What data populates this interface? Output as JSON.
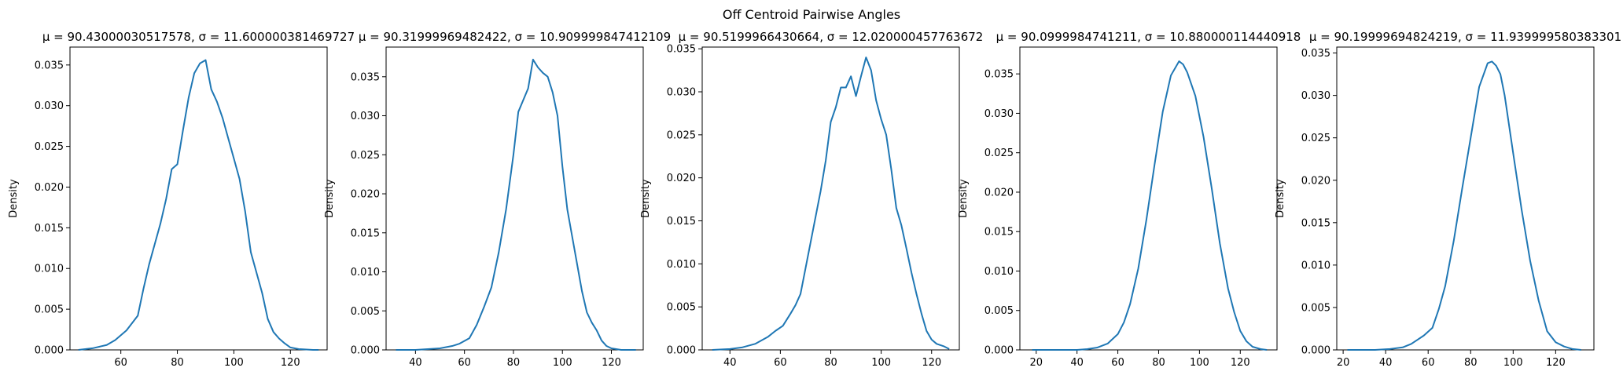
{
  "figure": {
    "suptitle": "Off Centroid Pairwise Angles"
  },
  "colors": {
    "line": "#1f77b4",
    "axes": "#000000",
    "background": "#ffffff"
  },
  "chart_data": [
    {
      "type": "line",
      "title": "μ = 90.43000030517578, σ = 11.600000381469727",
      "ylabel": "Density",
      "xlim": [
        42,
        133
      ],
      "ylim": [
        0,
        0.0372
      ],
      "xticks": [
        60,
        80,
        100,
        120
      ],
      "yticks": [
        0.0,
        0.005,
        0.01,
        0.015,
        0.02,
        0.025,
        0.03,
        0.035
      ],
      "grid": false,
      "series": [
        {
          "x": [
            45,
            50,
            55,
            58,
            62,
            66,
            68,
            70,
            72,
            74,
            76,
            78,
            80,
            82,
            84,
            86,
            88,
            90,
            92,
            94,
            96,
            98,
            100,
            102,
            104,
            106,
            108,
            110,
            112,
            114,
            116,
            118,
            120,
            123,
            128,
            130
          ],
          "y": [
            0.0,
            0.0002,
            0.0006,
            0.0012,
            0.0024,
            0.0042,
            0.0075,
            0.0105,
            0.013,
            0.0155,
            0.0185,
            0.0222,
            0.0228,
            0.027,
            0.031,
            0.034,
            0.0352,
            0.0356,
            0.032,
            0.0305,
            0.0285,
            0.026,
            0.0235,
            0.021,
            0.017,
            0.012,
            0.0095,
            0.007,
            0.0038,
            0.0022,
            0.0014,
            0.0008,
            0.0003,
            0.0001,
            0.0,
            0.0
          ]
        }
      ]
    },
    {
      "type": "line",
      "title": "μ = 90.31999969482422, σ = 10.909999847412109",
      "ylabel": "Density",
      "xlim": [
        28,
        133
      ],
      "ylim": [
        0,
        0.0388
      ],
      "xticks": [
        40,
        60,
        80,
        100,
        120
      ],
      "yticks": [
        0.0,
        0.005,
        0.01,
        0.015,
        0.02,
        0.025,
        0.03,
        0.035
      ],
      "grid": false,
      "series": [
        {
          "x": [
            32,
            40,
            45,
            50,
            55,
            58,
            62,
            65,
            68,
            71,
            74,
            77,
            80,
            82,
            84,
            86,
            88,
            90,
            92,
            94,
            96,
            98,
            100,
            102,
            104,
            106,
            108,
            110,
            112,
            114,
            116,
            118,
            120,
            124,
            130
          ],
          "y": [
            0.0,
            0.0,
            0.0001,
            0.0002,
            0.0005,
            0.0008,
            0.0015,
            0.0032,
            0.0055,
            0.008,
            0.0125,
            0.018,
            0.025,
            0.0305,
            0.032,
            0.0335,
            0.0372,
            0.0362,
            0.0355,
            0.035,
            0.033,
            0.03,
            0.0235,
            0.018,
            0.0145,
            0.011,
            0.0075,
            0.0048,
            0.0035,
            0.0025,
            0.0012,
            0.0005,
            0.0002,
            0.0,
            0.0
          ]
        }
      ]
    },
    {
      "type": "line",
      "title": "μ = 90.5199966430664, σ = 12.020000457763672",
      "ylabel": "Density",
      "xlim": [
        29,
        131
      ],
      "ylim": [
        0,
        0.0352
      ],
      "xticks": [
        40,
        60,
        80,
        100,
        120
      ],
      "yticks": [
        0.0,
        0.005,
        0.01,
        0.015,
        0.02,
        0.025,
        0.03,
        0.035
      ],
      "grid": false,
      "series": [
        {
          "x": [
            33,
            40,
            45,
            50,
            55,
            58,
            61,
            64,
            66,
            68,
            70,
            72,
            74,
            76,
            78,
            80,
            82,
            84,
            86,
            88,
            90,
            92,
            94,
            96,
            98,
            100,
            102,
            104,
            106,
            108,
            110,
            112,
            114,
            116,
            118,
            120,
            122,
            125,
            127
          ],
          "y": [
            0.0,
            0.0001,
            0.0003,
            0.0007,
            0.0015,
            0.0022,
            0.0028,
            0.0042,
            0.0052,
            0.0065,
            0.0095,
            0.0125,
            0.0155,
            0.0185,
            0.022,
            0.0265,
            0.0282,
            0.0305,
            0.0305,
            0.0318,
            0.0295,
            0.0318,
            0.034,
            0.0325,
            0.029,
            0.0268,
            0.025,
            0.021,
            0.0165,
            0.0145,
            0.0118,
            0.009,
            0.0065,
            0.0042,
            0.0022,
            0.0012,
            0.0007,
            0.0004,
            0.0001
          ]
        }
      ]
    },
    {
      "type": "line",
      "title": "μ = 90.0999984741211, σ = 10.880000114440918",
      "ylabel": "Density",
      "xlim": [
        12,
        138
      ],
      "ylim": [
        0,
        0.0384
      ],
      "xticks": [
        20,
        40,
        60,
        80,
        100,
        120
      ],
      "yticks": [
        0.0,
        0.005,
        0.01,
        0.015,
        0.02,
        0.025,
        0.03,
        0.035
      ],
      "grid": false,
      "series": [
        {
          "x": [
            18,
            30,
            40,
            45,
            50,
            55,
            60,
            63,
            66,
            70,
            74,
            78,
            82,
            86,
            90,
            92,
            94,
            98,
            102,
            106,
            110,
            114,
            117,
            120,
            123,
            126,
            130,
            133
          ],
          "y": [
            0.0,
            0.0,
            0.0,
            0.0001,
            0.0003,
            0.0008,
            0.002,
            0.0035,
            0.0058,
            0.0103,
            0.0165,
            0.0235,
            0.0302,
            0.0348,
            0.0366,
            0.0362,
            0.0352,
            0.0322,
            0.027,
            0.0205,
            0.0135,
            0.0078,
            0.0048,
            0.0024,
            0.0011,
            0.0004,
            0.0001,
            0.0
          ]
        }
      ]
    },
    {
      "type": "line",
      "title": "μ = 90.19999694824219, σ = 11.939999580383301",
      "ylabel": "Density",
      "xlim": [
        17,
        138
      ],
      "ylim": [
        0,
        0.0357
      ],
      "xticks": [
        20,
        40,
        60,
        80,
        100,
        120
      ],
      "yticks": [
        0.0,
        0.005,
        0.01,
        0.015,
        0.02,
        0.025,
        0.03,
        0.035
      ],
      "grid": false,
      "series": [
        {
          "x": [
            22,
            35,
            42,
            48,
            52,
            55,
            58,
            62,
            65,
            68,
            72,
            76,
            80,
            84,
            88,
            90,
            92,
            94,
            96,
            100,
            104,
            108,
            112,
            116,
            120,
            124,
            128,
            132
          ],
          "y": [
            0.0,
            0.0,
            0.0001,
            0.0003,
            0.0007,
            0.0012,
            0.0017,
            0.0026,
            0.0048,
            0.0075,
            0.0128,
            0.019,
            0.025,
            0.031,
            0.0338,
            0.034,
            0.0335,
            0.0325,
            0.03,
            0.0232,
            0.0165,
            0.0105,
            0.0058,
            0.0022,
            0.0009,
            0.0004,
            0.0001,
            0.0
          ]
        }
      ]
    }
  ]
}
